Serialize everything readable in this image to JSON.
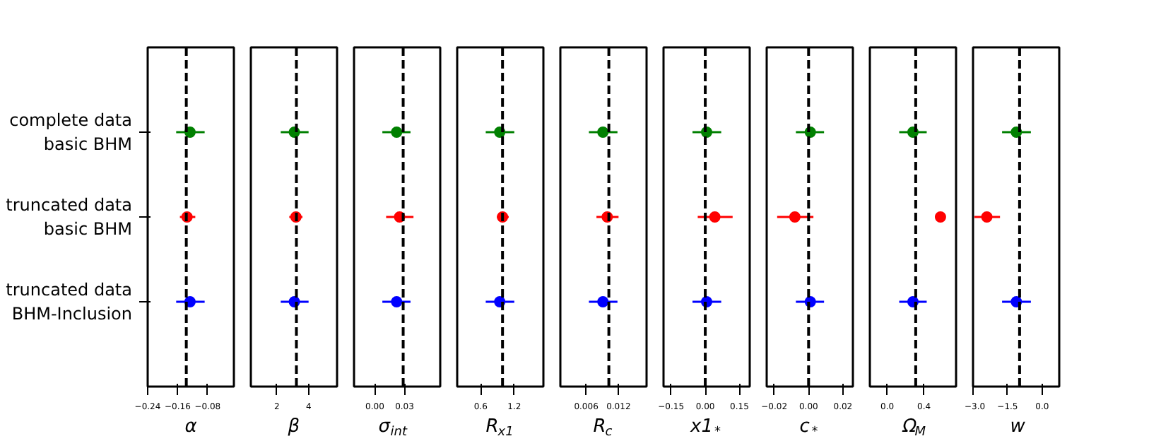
{
  "chart_data": [
    {
      "type": "scatter",
      "orientation": "horizontal",
      "categories": [
        "complete data\nbasic BHM",
        "truncated data\nbasic BHM",
        "truncated data\nBHM-Inclusion"
      ],
      "values": [
        -0.127,
        -0.135,
        -0.127
      ],
      "colors": [
        "#008000",
        "#ff0000",
        "#0000ff"
      ],
      "errors": [
        [
          -0.164,
          -0.088
        ],
        [
          -0.154,
          -0.113
        ],
        [
          -0.164,
          -0.088
        ]
      ],
      "xlabel": "α",
      "xlim": [
        -0.24,
        -0.01
      ],
      "xticks": [
        {
          "value": -0.24,
          "label": "−0.24"
        },
        {
          "value": -0.16,
          "label": "−0.16"
        },
        {
          "value": -0.08,
          "label": "−0.08"
        }
      ],
      "ref_lines": [
        {
          "axis": "x",
          "value": -0.137
        }
      ],
      "marker": "circle"
    },
    {
      "type": "scatter",
      "orientation": "horizontal",
      "values": [
        3.1,
        3.2,
        3.1
      ],
      "colors": [
        "#008000",
        "#ff0000",
        "#0000ff"
      ],
      "errors": [
        [
          2.24,
          4.0
        ],
        [
          2.78,
          3.61
        ],
        [
          2.24,
          4.0
        ]
      ],
      "xlabel": "β",
      "xlim": [
        0.35,
        5.8
      ],
      "xticks": [
        2,
        4
      ],
      "ref_lines": [
        {
          "axis": "x",
          "value": 3.23
        }
      ],
      "marker": "circle",
      "tick_labels": "x"
    },
    {
      "type": "scatter",
      "orientation": "horizontal",
      "values": [
        0.022,
        0.025,
        0.022
      ],
      "colors": [
        "#008000",
        "#ff0000",
        "#0000ff"
      ],
      "errors": [
        [
          0.0076,
          0.036
        ],
        [
          0.0114,
          0.039
        ],
        [
          0.0076,
          0.036
        ]
      ],
      "xlabel": "σ$_{int}$",
      "xlim": [
        -0.021,
        0.066
      ],
      "xticks": [
        {
          "value": 0,
          "label": "0.00"
        },
        0.03
      ],
      "ref_lines": [
        {
          "axis": "x",
          "value": 0.0286
        }
      ],
      "marker": "circle",
      "tick_labels": "x"
    },
    {
      "type": "scatter",
      "orientation": "horizontal",
      "values": [
        0.94,
        0.99,
        0.94
      ],
      "colors": [
        "#008000",
        "#ff0000",
        "#0000ff"
      ],
      "errors": [
        [
          0.69,
          1.2
        ],
        [
          0.89,
          1.1
        ],
        [
          0.69,
          1.2
        ]
      ],
      "xlabel": "R$_{x1}$",
      "xlim": [
        0.18,
        1.72
      ],
      "xticks": [
        0.6,
        1.2
      ],
      "ref_lines": [
        {
          "axis": "x",
          "value": 0.99
        }
      ],
      "marker": "circle",
      "tick_labels": "x"
    },
    {
      "type": "scatter",
      "orientation": "horizontal",
      "values": [
        0.0091,
        0.0099,
        0.0091
      ],
      "colors": [
        "#008000",
        "#ff0000",
        "#0000ff"
      ],
      "errors": [
        [
          0.0065,
          0.0118
        ],
        [
          0.0079,
          0.012
        ],
        [
          0.0065,
          0.0118
        ]
      ],
      "xlabel": "R$_{c}$",
      "xlim": [
        0.0012,
        0.0172
      ],
      "xticks": [
        0.006,
        0.012
      ],
      "ref_lines": [
        {
          "axis": "x",
          "value": 0.0102
        }
      ],
      "marker": "circle",
      "tick_labels": "x"
    },
    {
      "type": "scatter",
      "orientation": "horizontal",
      "values": [
        0.006,
        0.042,
        0.006
      ],
      "colors": [
        "#008000",
        "#ff0000",
        "#0000ff"
      ],
      "errors": [
        [
          -0.056,
          0.07
        ],
        [
          -0.033,
          0.12
        ],
        [
          -0.056,
          0.07
        ]
      ],
      "xlabel": "x1$_{*}$",
      "xlim": [
        -0.183,
        0.195
      ],
      "xticks": [
        {
          "value": -0.15,
          "label": "−0.15"
        },
        {
          "value": 0,
          "label": "0.00"
        },
        0.15
      ],
      "ref_lines": [
        {
          "axis": "x",
          "value": 0
        }
      ],
      "marker": "circle",
      "tick_labels": "x"
    },
    {
      "type": "scatter",
      "orientation": "horizontal",
      "values": [
        0.001,
        -0.008,
        0.001
      ],
      "colors": [
        "#008000",
        "#ff0000",
        "#0000ff"
      ],
      "errors": [
        [
          -0.0074,
          0.009
        ],
        [
          -0.0183,
          0.0028
        ],
        [
          -0.0074,
          0.009
        ]
      ],
      "xlabel": "c$_{*}$",
      "xlim": [
        -0.0244,
        0.0258
      ],
      "xticks": [
        {
          "value": -0.02,
          "label": "−0.02"
        },
        {
          "value": 0,
          "label": "0.00"
        },
        0.02
      ],
      "ref_lines": [
        {
          "axis": "x",
          "value": 0
        }
      ],
      "marker": "circle",
      "tick_labels": "x"
    },
    {
      "type": "scatter",
      "orientation": "horizontal",
      "values": [
        0.28,
        0.58,
        0.28
      ],
      "colors": [
        "#008000",
        "#ff0000",
        "#0000ff"
      ],
      "errors": [
        [
          0.13,
          0.43
        ],
        [
          0.53,
          0.63
        ],
        [
          0.13,
          0.43
        ]
      ],
      "xlabel": "Ω$_{M}$",
      "xlim": [
        -0.19,
        0.75
      ],
      "xticks": [
        {
          "value": 0,
          "label": "0.0"
        },
        0.4
      ],
      "ref_lines": [
        {
          "axis": "x",
          "value": 0.31
        }
      ],
      "marker": "circle",
      "tick_labels": "x"
    },
    {
      "type": "scatter",
      "orientation": "horizontal",
      "values": [
        -1.12,
        -2.4,
        -1.12
      ],
      "colors": [
        "#008000",
        "#ff0000",
        "#0000ff"
      ],
      "errors": [
        [
          -1.74,
          -0.49
        ],
        [
          -2.94,
          -1.83
        ],
        [
          -1.74,
          -0.49
        ]
      ],
      "xlabel": "w",
      "xlim": [
        -3.0,
        0.74
      ],
      "xticks": [
        {
          "value": -3.0,
          "label": "−3.0"
        },
        {
          "value": -1.5,
          "label": "−1.5"
        },
        {
          "value": 0,
          "label": "0.0"
        }
      ],
      "ref_lines": [
        {
          "axis": "x",
          "value": -0.98
        }
      ],
      "marker": "circle",
      "tick_labels": "x"
    }
  ]
}
